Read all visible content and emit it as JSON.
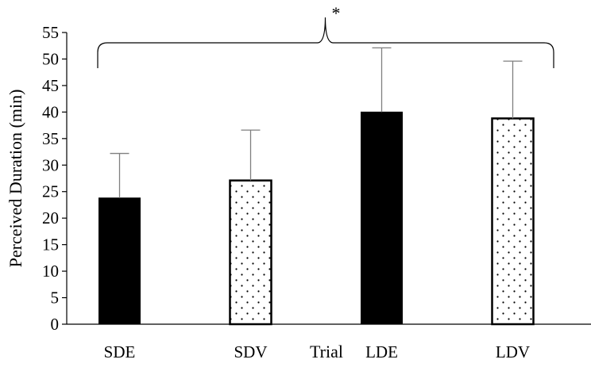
{
  "chart_data": {
    "type": "bar",
    "title": "",
    "xlabel": "Trial",
    "ylabel": "Perceived Duration (min)",
    "ylim": [
      0,
      55
    ],
    "yticks": [
      0,
      5,
      10,
      15,
      20,
      25,
      30,
      35,
      40,
      45,
      50,
      55
    ],
    "grid": false,
    "categories": [
      "SDE",
      "SDV",
      "LDE",
      "LDV"
    ],
    "values": [
      23.8,
      27.1,
      40.0,
      38.8
    ],
    "error_upper": [
      8.4,
      9.5,
      12.1,
      10.8
    ],
    "fills": [
      "solid",
      "dotted",
      "solid",
      "dotted"
    ],
    "annotation": {
      "text": "*",
      "spans": [
        "SDE",
        "LDV"
      ],
      "style": "brace"
    },
    "colors": {
      "solid": "#000000",
      "dotted_bg": "#ffffff",
      "dot": "#000000",
      "error_bar": "#7f7f7f",
      "axis": "#000000"
    }
  }
}
